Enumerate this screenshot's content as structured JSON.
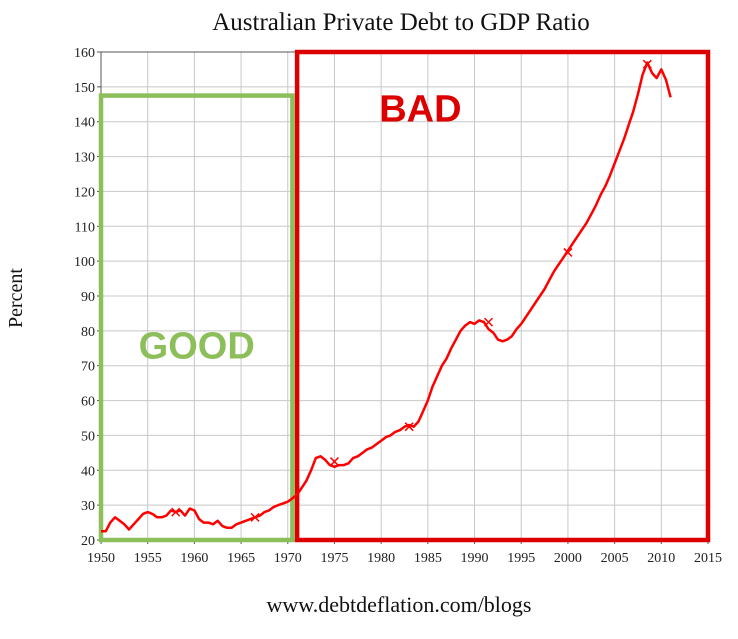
{
  "chart_data": {
    "type": "line",
    "title": "Australian Private Debt to GDP Ratio",
    "ylabel": "Percent",
    "xlabel": "",
    "source_text": "www.debtdeflation.com/blogs",
    "xlim": [
      1950,
      2015
    ],
    "ylim": [
      20,
      160
    ],
    "x_ticks": [
      1950,
      1955,
      1960,
      1965,
      1970,
      1975,
      1980,
      1985,
      1990,
      1995,
      2000,
      2005,
      2010,
      2015
    ],
    "y_ticks": [
      20,
      30,
      40,
      50,
      60,
      70,
      80,
      90,
      100,
      110,
      120,
      130,
      140,
      150,
      160
    ],
    "grid": true,
    "line_color": "#ff0000",
    "series": [
      {
        "x": [
          1950,
          1950.5,
          1951,
          1951.5,
          1952,
          1952.5,
          1953,
          1953.5,
          1954,
          1954.5,
          1955,
          1955.5,
          1956,
          1956.5,
          1957,
          1957.5,
          1958,
          1958.5,
          1959,
          1959.5,
          1960,
          1960.5,
          1961,
          1961.5,
          1962,
          1962.5,
          1963,
          1963.5,
          1964,
          1964.5,
          1965,
          1965.5,
          1966,
          1966.5,
          1967,
          1967.5,
          1968,
          1968.5,
          1969,
          1969.5,
          1970,
          1970.5,
          1971,
          1971.5,
          1972,
          1972.5,
          1973,
          1973.5,
          1974,
          1974.5,
          1975,
          1975.5,
          1976,
          1976.5,
          1977,
          1977.5,
          1978,
          1978.5,
          1979,
          1979.5,
          1980,
          1980.5,
          1981,
          1981.5,
          1982,
          1982.5,
          1983,
          1983.5,
          1984,
          1984.5,
          1985,
          1985.5,
          1986,
          1986.5,
          1987,
          1987.5,
          1988,
          1988.5,
          1989,
          1989.5,
          1990,
          1990.5,
          1991,
          1991.5,
          1992,
          1992.5,
          1993,
          1993.5,
          1994,
          1994.5,
          1995,
          1995.5,
          1996,
          1996.5,
          1997,
          1997.5,
          1998,
          1998.5,
          1999,
          1999.5,
          2000,
          2000.5,
          2001,
          2001.5,
          2002,
          2002.5,
          2003,
          2003.5,
          2004,
          2004.5,
          2005,
          2005.5,
          2006,
          2006.5,
          2007,
          2007.5,
          2008,
          2008.5,
          2009,
          2009.5,
          2010,
          2010.5,
          2011
        ],
        "y": [
          22.5,
          22.5,
          25,
          26.5,
          25.5,
          24.5,
          23,
          24.5,
          26,
          27.5,
          28,
          27.5,
          26.5,
          26.5,
          27,
          28.5,
          28,
          28.5,
          27,
          29,
          28.5,
          26,
          25,
          25,
          24.5,
          25.5,
          24,
          23.5,
          23.5,
          24.5,
          25,
          25.5,
          26,
          26.5,
          27,
          28,
          28.5,
          29.5,
          30,
          30.5,
          31,
          32,
          33,
          35,
          37,
          40,
          43.5,
          44,
          43,
          41.5,
          41,
          41.5,
          41.5,
          42,
          43.5,
          44,
          45,
          46,
          46.5,
          47.5,
          48.5,
          49.5,
          50,
          51,
          51.5,
          52.5,
          53,
          52.5,
          54,
          57,
          60,
          64,
          67,
          70,
          72,
          75,
          77.5,
          80,
          81.5,
          82.5,
          82,
          83,
          82.5,
          80.5,
          79.5,
          77.5,
          77,
          77.5,
          78.5,
          80.5,
          82,
          84,
          86,
          88,
          90,
          92,
          94.5,
          97,
          99,
          101,
          103,
          105,
          107,
          109,
          111,
          113.5,
          116,
          119,
          121.5,
          124.5,
          128,
          131.5,
          135,
          139,
          143,
          148,
          153.5,
          157,
          154,
          152.5,
          155,
          152,
          147
        ]
      }
    ],
    "markers": [
      {
        "x": 1958,
        "y": 28
      },
      {
        "x": 1966.5,
        "y": 26.5
      },
      {
        "x": 1975,
        "y": 42.5
      },
      {
        "x": 1983,
        "y": 52.5
      },
      {
        "x": 1991.5,
        "y": 82.5
      },
      {
        "x": 2000,
        "y": 102.5
      },
      {
        "x": 2008.5,
        "y": 156.5
      }
    ],
    "annotations": [
      {
        "text": "GOOD",
        "color": "#8cbf5a",
        "x_range": [
          1950,
          1970.5
        ],
        "y_range": [
          20,
          147.5
        ]
      },
      {
        "text": "BAD",
        "color": "#dd0000",
        "x_range": [
          1971,
          2015
        ],
        "y_range": [
          20,
          160
        ]
      }
    ]
  }
}
